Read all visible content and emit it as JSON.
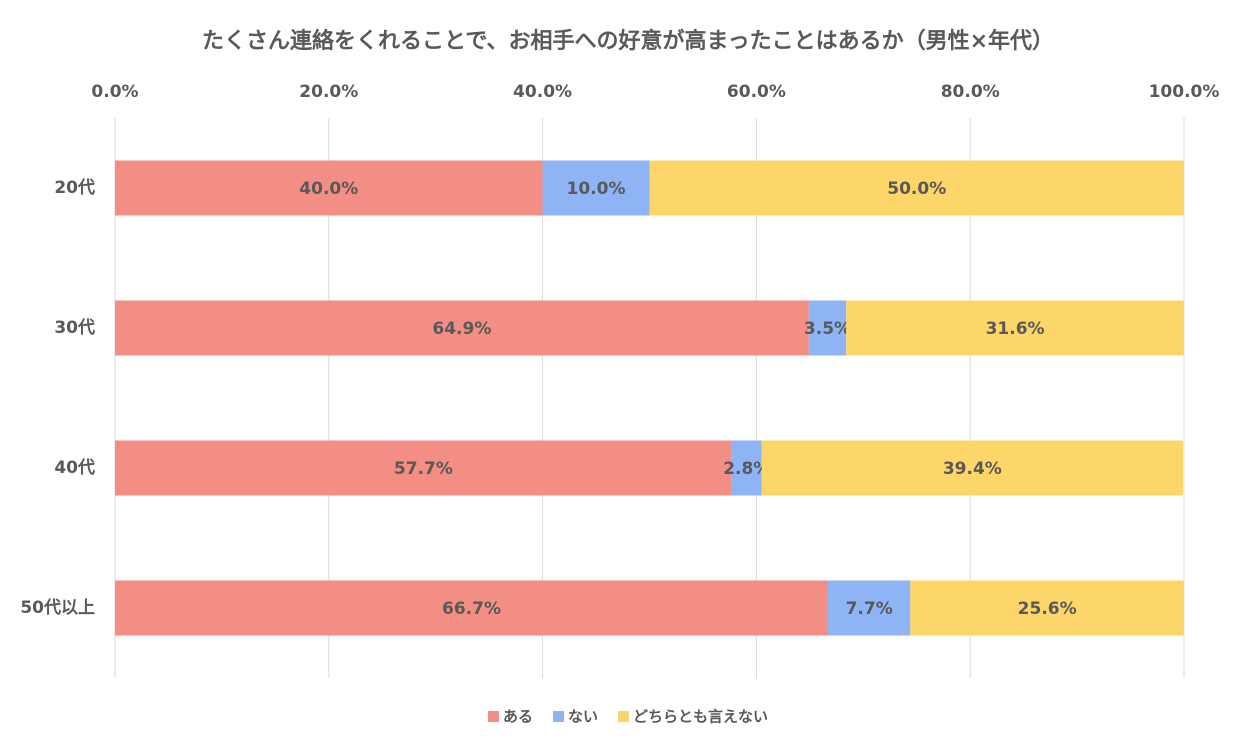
{
  "chart_data": {
    "type": "bar",
    "orientation": "horizontal",
    "stacked": true,
    "title": "たくさん連絡をくれることで、お相手への好意が高まったことはあるか（男性×年代）",
    "categories": [
      "20代",
      "30代",
      "40代",
      "50代以上"
    ],
    "series": [
      {
        "name": "ある",
        "color": "#f28e84",
        "values": [
          40.0,
          64.9,
          57.7,
          66.7
        ],
        "value_labels": [
          "40.0%",
          "64.9%",
          "57.7%",
          "66.7%"
        ]
      },
      {
        "name": "ない",
        "color": "#8fb4f5",
        "values": [
          10.0,
          3.5,
          2.8,
          7.7
        ],
        "value_labels": [
          "10.0%",
          "3.5%",
          "2.8%",
          "7.7%"
        ]
      },
      {
        "name": "どちらとも言えない",
        "color": "#fcd669",
        "values": [
          50.0,
          31.6,
          39.4,
          25.6
        ],
        "value_labels": [
          "50.0%",
          "31.6%",
          "39.4%",
          "25.6%"
        ]
      }
    ],
    "xlim": [
      0,
      100
    ],
    "xticks": [
      {
        "value": 0,
        "label": "0.0%"
      },
      {
        "value": 20,
        "label": "20.0%"
      },
      {
        "value": 40,
        "label": "40.0%"
      },
      {
        "value": 60,
        "label": "60.0%"
      },
      {
        "value": 80,
        "label": "80.0%"
      },
      {
        "value": 100,
        "label": "100.0%"
      }
    ],
    "grid": true,
    "legend": "bottom"
  }
}
